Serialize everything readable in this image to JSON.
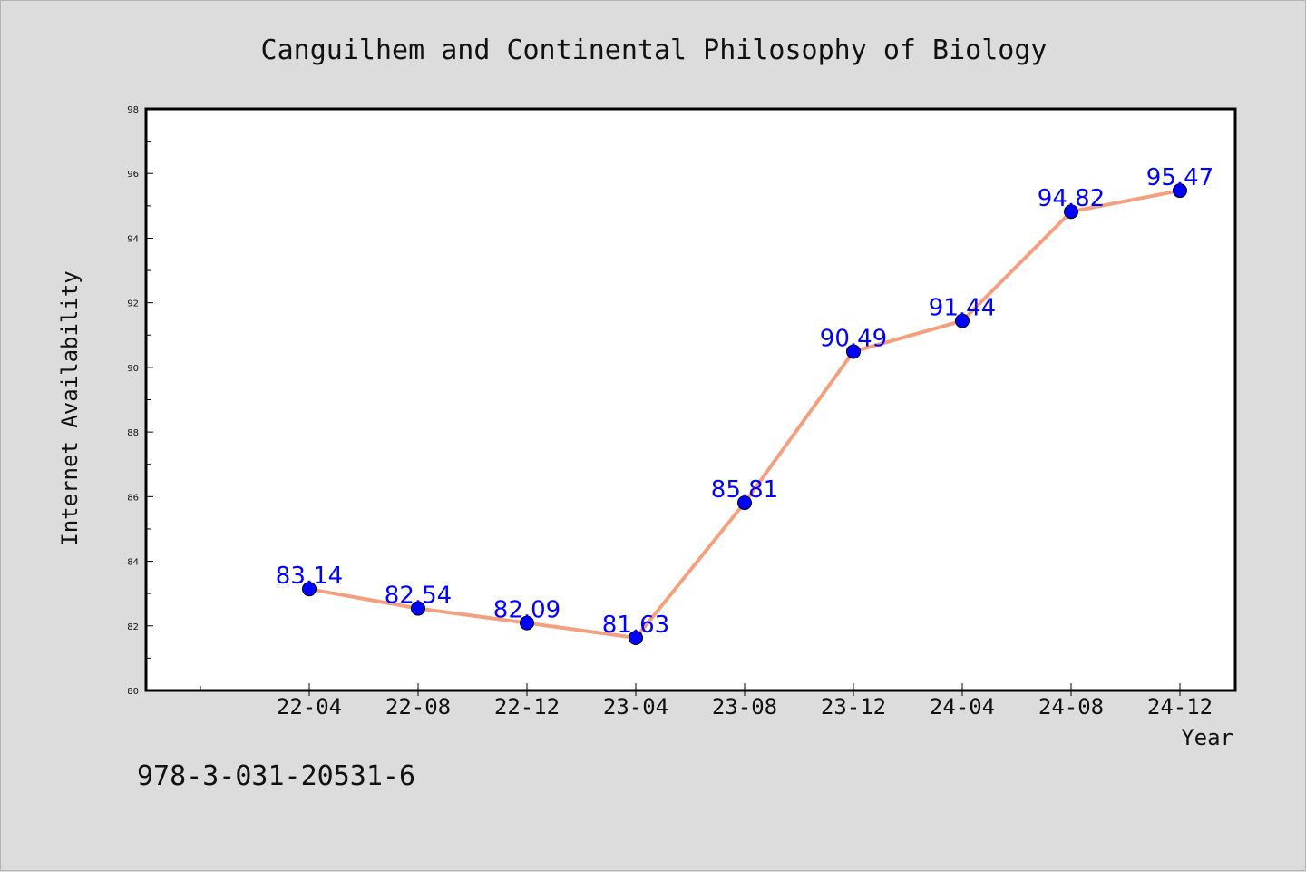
{
  "chart_data": {
    "type": "line",
    "title": "Canguilhem and Continental Philosophy of Biology",
    "xlabel": "Year",
    "ylabel": "Internet Availability",
    "categories": [
      "22-04",
      "22-08",
      "22-12",
      "23-04",
      "23-08",
      "23-12",
      "24-04",
      "24-08",
      "24-12"
    ],
    "series": [
      {
        "values": [
          83.14,
          82.54,
          82.09,
          81.63,
          85.81,
          90.49,
          91.44,
          94.82,
          95.47
        ],
        "labels": [
          "83.14",
          "82.54",
          "82.09",
          "81.63",
          "85.81",
          "90.49",
          "91.44",
          "94.82",
          "95.47"
        ],
        "line_color": "#f4a07e",
        "marker_color": "#0000ff"
      }
    ],
    "ylim": [
      80,
      98
    ],
    "yticks": [
      "80",
      "82",
      "84",
      "86",
      "88",
      "90",
      "92",
      "94",
      "96",
      "98"
    ],
    "grid": false,
    "legend": "none"
  },
  "footer": {
    "isbn": "978-3-031-20531-6"
  }
}
